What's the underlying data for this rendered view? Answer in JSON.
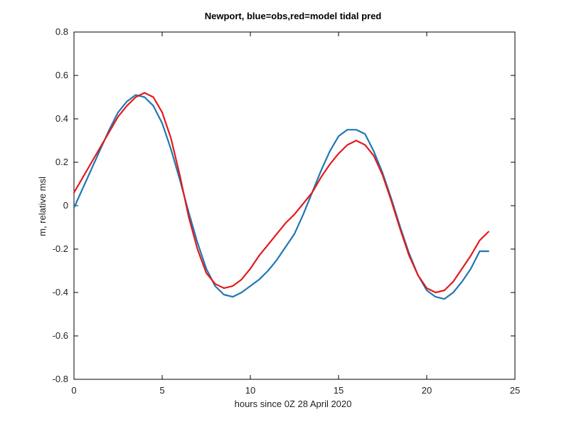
{
  "chart_data": {
    "type": "line",
    "title": "Newport, blue=obs,red=model tidal pred",
    "xlabel": "hours since 0Z 28 April 2020",
    "ylabel": "m, relative msl",
    "xlim": [
      0,
      25
    ],
    "ylim": [
      -0.8,
      0.8
    ],
    "xticks": [
      0,
      5,
      10,
      15,
      20,
      25
    ],
    "yticks": [
      -0.8,
      -0.6,
      -0.4,
      -0.2,
      0,
      0.2,
      0.4,
      0.6,
      0.8
    ],
    "grid": false,
    "legend": "none",
    "series": [
      {
        "color": "#1f77b4",
        "x": [
          0,
          0.5,
          1,
          1.5,
          2,
          2.5,
          3,
          3.5,
          4,
          4.5,
          5,
          5.5,
          6,
          6.5,
          7,
          7.5,
          8,
          8.5,
          9,
          9.5,
          10,
          10.5,
          11,
          11.5,
          12,
          12.5,
          13,
          13.5,
          14,
          14.5,
          15,
          15.5,
          16,
          16.5,
          17,
          17.5,
          18,
          18.5,
          19,
          19.5,
          20,
          20.5,
          21,
          21.5,
          22,
          22.5,
          23,
          23.5
        ],
        "y": [
          -0.01,
          0.08,
          0.17,
          0.26,
          0.35,
          0.43,
          0.48,
          0.51,
          0.5,
          0.46,
          0.38,
          0.26,
          0.12,
          -0.03,
          -0.17,
          -0.29,
          -0.37,
          -0.41,
          -0.42,
          -0.4,
          -0.37,
          -0.34,
          -0.3,
          -0.25,
          -0.19,
          -0.13,
          -0.04,
          0.06,
          0.16,
          0.25,
          0.32,
          0.35,
          0.35,
          0.33,
          0.25,
          0.15,
          0.03,
          -0.1,
          -0.22,
          -0.32,
          -0.39,
          -0.42,
          -0.43,
          -0.4,
          -0.35,
          -0.29,
          -0.21,
          -0.21
        ]
      },
      {
        "color": "#e31a1c",
        "x": [
          0,
          0.5,
          1,
          1.5,
          2,
          2.5,
          3,
          3.5,
          4,
          4.5,
          5,
          5.5,
          6,
          6.5,
          7,
          7.5,
          8,
          8.5,
          9,
          9.5,
          10,
          10.5,
          11,
          11.5,
          12,
          12.5,
          13,
          13.5,
          14,
          14.5,
          15,
          15.5,
          16,
          16.5,
          17,
          17.5,
          18,
          18.5,
          19,
          19.5,
          20,
          20.5,
          21,
          21.5,
          22,
          22.5,
          23,
          23.5
        ],
        "y": [
          0.06,
          0.13,
          0.2,
          0.27,
          0.34,
          0.41,
          0.46,
          0.5,
          0.52,
          0.5,
          0.43,
          0.31,
          0.14,
          -0.05,
          -0.2,
          -0.31,
          -0.36,
          -0.38,
          -0.37,
          -0.34,
          -0.29,
          -0.23,
          -0.18,
          -0.13,
          -0.08,
          -0.04,
          0.01,
          0.06,
          0.13,
          0.19,
          0.24,
          0.28,
          0.3,
          0.28,
          0.23,
          0.14,
          0.02,
          -0.11,
          -0.23,
          -0.32,
          -0.38,
          -0.4,
          -0.39,
          -0.35,
          -0.29,
          -0.23,
          -0.16,
          -0.12
        ]
      }
    ]
  }
}
